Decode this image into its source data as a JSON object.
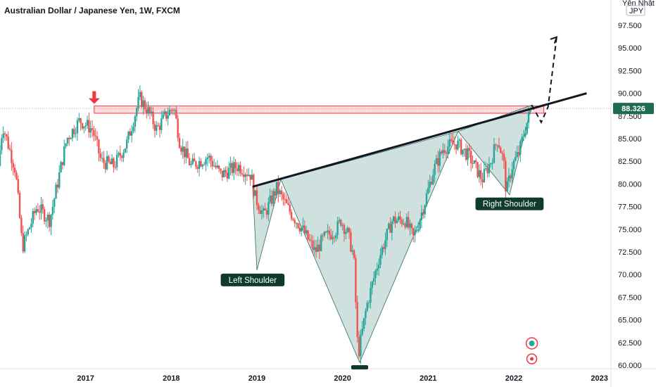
{
  "chart_title": "Australian Dollar / Japanese Yen, 1W, FXCM",
  "currency_label": "JPY",
  "axis_top_label": "Yên Nhật",
  "chart_data": {
    "type": "candlestick",
    "title": "Australian Dollar / Japanese Yen, 1W, FXCM",
    "ylabel": "JPY",
    "ylim": [
      60.0,
      98.5
    ],
    "xlim": [
      2016.0,
      2023.4
    ],
    "y_ticks": [
      "97.500",
      "95.000",
      "92.500",
      "90.000",
      "87.500",
      "85.000",
      "82.500",
      "80.000",
      "77.500",
      "75.000",
      "72.500",
      "70.000",
      "67.500",
      "65.000",
      "62.500",
      "60.000"
    ],
    "x_ticks": [
      {
        "label": "2017",
        "x": 2017.0
      },
      {
        "label": "2018",
        "x": 2018.0
      },
      {
        "label": "2019",
        "x": 2019.0
      },
      {
        "label": "2020",
        "x": 2020.0
      },
      {
        "label": "2021",
        "x": 2021.0
      },
      {
        "label": "2022",
        "x": 2022.0
      },
      {
        "label": "2023",
        "x": 2023.0
      }
    ],
    "current_price": "88.326",
    "current_price_value": 88.326,
    "up_color": "#26a69a",
    "down_color": "#ef5350",
    "anchors": [
      [
        2016.0,
        82.0
      ],
      [
        2016.05,
        86.5
      ],
      [
        2016.2,
        81.5
      ],
      [
        2016.28,
        73.0
      ],
      [
        2016.45,
        77.5
      ],
      [
        2016.6,
        76.0
      ],
      [
        2016.8,
        85.0
      ],
      [
        2016.95,
        87.0
      ],
      [
        2017.1,
        86.0
      ],
      [
        2017.2,
        82.5
      ],
      [
        2017.35,
        82.0
      ],
      [
        2017.5,
        84.5
      ],
      [
        2017.65,
        89.5
      ],
      [
        2017.75,
        88.0
      ],
      [
        2017.85,
        86.0
      ],
      [
        2017.95,
        87.5
      ],
      [
        2018.05,
        88.5
      ],
      [
        2018.12,
        84.5
      ],
      [
        2018.25,
        82.0
      ],
      [
        2018.45,
        83.0
      ],
      [
        2018.6,
        81.0
      ],
      [
        2018.8,
        82.0
      ],
      [
        2018.95,
        81.0
      ],
      [
        2019.0,
        78.5
      ],
      [
        2019.1,
        76.5
      ],
      [
        2019.25,
        79.5
      ],
      [
        2019.4,
        77.0
      ],
      [
        2019.55,
        75.0
      ],
      [
        2019.7,
        72.5
      ],
      [
        2019.8,
        74.0
      ],
      [
        2019.95,
        75.0
      ],
      [
        2020.0,
        76.0
      ],
      [
        2020.08,
        74.5
      ],
      [
        2020.15,
        72.0
      ],
      [
        2020.2,
        61.0
      ],
      [
        2020.3,
        66.5
      ],
      [
        2020.45,
        72.0
      ],
      [
        2020.6,
        76.0
      ],
      [
        2020.75,
        76.0
      ],
      [
        2020.85,
        74.0
      ],
      [
        2020.98,
        78.0
      ],
      [
        2021.08,
        81.5
      ],
      [
        2021.2,
        84.0
      ],
      [
        2021.35,
        84.5
      ],
      [
        2021.5,
        83.0
      ],
      [
        2021.65,
        80.5
      ],
      [
        2021.75,
        82.5
      ],
      [
        2021.83,
        85.0
      ],
      [
        2021.9,
        82.5
      ],
      [
        2021.93,
        79.0
      ],
      [
        2022.0,
        82.0
      ],
      [
        2022.08,
        83.5
      ],
      [
        2022.15,
        86.0
      ],
      [
        2022.21,
        88.0
      ]
    ],
    "neckline": [
      [
        2018.95,
        79.7
      ],
      [
        2022.85,
        90.0
      ]
    ],
    "resistance_zone": [
      87.8,
      88.6
    ],
    "resistance_x": [
      2017.1,
      2022.35
    ],
    "pattern_points": [
      [
        2018.95,
        79.7
      ],
      [
        2019.0,
        70.5
      ],
      [
        2019.28,
        80.5
      ],
      [
        2020.2,
        60.3
      ],
      [
        2021.35,
        85.8
      ],
      [
        2021.95,
        78.8
      ],
      [
        2022.21,
        88.7
      ]
    ],
    "projection": [
      [
        2022.21,
        88.7
      ],
      [
        2022.32,
        86.8
      ],
      [
        2022.4,
        88.5
      ],
      [
        2022.5,
        96.2
      ]
    ],
    "annotations": [
      {
        "label": "Left Shoulder",
        "x": 2018.95,
        "y": 69.4
      },
      {
        "label": "Right Shoulder",
        "x": 2021.95,
        "y": 77.8
      }
    ]
  }
}
